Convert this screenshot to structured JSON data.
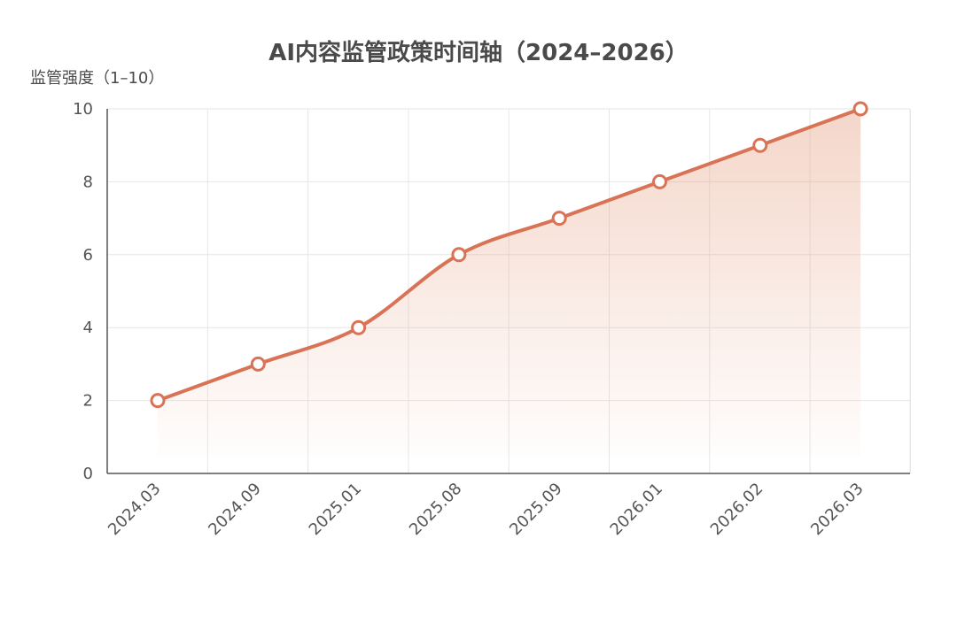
{
  "chart_data": {
    "type": "line",
    "title": "AI内容监管政策时间轴（2024–2026）",
    "xlabel": "",
    "ylabel": "监管强度（1–10）",
    "categories": [
      "2024.03",
      "2024.09",
      "2025.01",
      "2025.08",
      "2025.09",
      "2026.01",
      "2026.02",
      "2026.03"
    ],
    "series": [
      {
        "values": [
          2,
          3,
          4,
          6,
          7,
          8,
          9,
          10
        ]
      }
    ],
    "ylim": [
      0,
      10
    ],
    "yticks": [
      0,
      2,
      4,
      6,
      8,
      10
    ],
    "grid": true,
    "legend": "none",
    "colors": {
      "line": "#d97355",
      "fill_top": "#e7a488",
      "point_fill": "#ffffff"
    }
  }
}
